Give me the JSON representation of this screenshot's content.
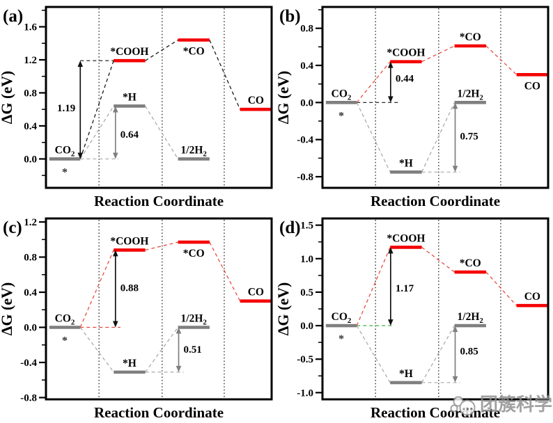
{
  "figure": {
    "xlabel": "Reaction Coordinate",
    "ylabel": "ΔG (eV)",
    "watermark": {
      "text": "团簇科学"
    },
    "colors": {
      "red": "#f40000",
      "redline": "#e8473a",
      "gray": "#7f7f7f",
      "lightgray": "#a8a8a8",
      "black": "#111111",
      "green": "#2ca62c"
    }
  },
  "chart_data": [
    {
      "type": "line",
      "panel": "(a)",
      "xlabel": "Reaction Coordinate",
      "ylabel": "ΔG (eV)",
      "ylim": [
        -0.35,
        1.84
      ],
      "ytick_values": [
        0.0,
        0.4,
        0.8,
        1.2,
        1.6
      ],
      "ytick_labels": [
        "0.0",
        "0.4",
        "0.8",
        "1.2",
        "1.6"
      ],
      "minor_tick_step": 0.2,
      "gridlines_x": [
        0.235,
        0.515,
        0.79
      ],
      "states": [
        {
          "label": "CO_2",
          "energy": 0.0,
          "col": 0,
          "color": "gray",
          "label_pos": "above",
          "star": true
        },
        {
          "label": "*COOH",
          "energy": 1.19,
          "col": 1,
          "color": "red",
          "label_pos": "above"
        },
        {
          "label": "*H",
          "energy": 0.64,
          "col": 1,
          "color": "gray",
          "label_pos": "above"
        },
        {
          "label": "*CO",
          "energy": 1.44,
          "col": 2,
          "color": "red",
          "label_pos": "below"
        },
        {
          "label": "1/2H_2",
          "energy": 0.0,
          "col": 2,
          "color": "gray",
          "label_pos": "above"
        },
        {
          "label": "CO",
          "energy": 0.6,
          "col": 3,
          "color": "red",
          "label_pos": "above"
        }
      ],
      "paths": [
        {
          "from": 0,
          "to": 1,
          "color": "black"
        },
        {
          "from": 1,
          "to": 3,
          "color": "black"
        },
        {
          "from": 3,
          "to": 5,
          "color": "black"
        },
        {
          "from": 0,
          "to": 2,
          "color": "lightgray"
        },
        {
          "from": 2,
          "to": 4,
          "color": "lightgray"
        }
      ],
      "annotations": [
        {
          "value": "1.19",
          "x": 0.152,
          "e1": 0.0,
          "e2": 1.19,
          "color": "black",
          "side": "left",
          "label_e": 0.62
        },
        {
          "value": "0.64",
          "x": 0.308,
          "e1": 0.0,
          "e2": 0.64,
          "color": "gray",
          "side": "right",
          "label_e": 0.3
        }
      ],
      "guides": [
        {
          "e": 1.19,
          "x1": 0.152,
          "x2": 0.302,
          "color": "black"
        },
        {
          "e": 0.0,
          "x1": 0.152,
          "x2": 0.322,
          "color": "lightgray"
        }
      ]
    },
    {
      "type": "line",
      "panel": "(b)",
      "xlabel": "Reaction Coordinate",
      "ylabel": "ΔG (eV)",
      "ylim": [
        -0.92,
        1.03
      ],
      "ytick_values": [
        -0.8,
        -0.4,
        0.0,
        0.4,
        0.8
      ],
      "ytick_labels": [
        "-0.8",
        "-0.4",
        "0.0",
        "0.4",
        "0.8"
      ],
      "minor_tick_step": 0.2,
      "gridlines_x": [
        0.235,
        0.515,
        0.79
      ],
      "states": [
        {
          "label": "CO_2",
          "energy": 0.0,
          "col": 0,
          "color": "gray",
          "label_pos": "above",
          "star": true
        },
        {
          "label": "*COOH",
          "energy": 0.44,
          "col": 1,
          "color": "red",
          "label_pos": "above"
        },
        {
          "label": "*H",
          "energy": -0.75,
          "col": 1,
          "color": "gray",
          "label_pos": "above"
        },
        {
          "label": "*CO",
          "energy": 0.61,
          "col": 2,
          "color": "red",
          "label_pos": "above"
        },
        {
          "label": "1/2H_2",
          "energy": 0.0,
          "col": 2,
          "color": "gray",
          "label_pos": "above"
        },
        {
          "label": "CO",
          "energy": 0.3,
          "col": 3,
          "color": "red",
          "label_pos": "below"
        }
      ],
      "paths": [
        {
          "from": 0,
          "to": 1,
          "color": "redline"
        },
        {
          "from": 1,
          "to": 3,
          "color": "redline"
        },
        {
          "from": 3,
          "to": 5,
          "color": "redline"
        },
        {
          "from": 0,
          "to": 2,
          "color": "lightgray"
        },
        {
          "from": 2,
          "to": 4,
          "color": "lightgray"
        }
      ],
      "annotations": [
        {
          "value": "0.44",
          "x": 0.302,
          "e1": 0.0,
          "e2": 0.44,
          "color": "black",
          "side": "right",
          "label_e": 0.26
        },
        {
          "value": "0.75",
          "x": 0.588,
          "e1": -0.75,
          "e2": 0.0,
          "color": "gray",
          "side": "right",
          "label_e": -0.36
        }
      ],
      "guides": [
        {
          "e": 0.0,
          "x1": 0.152,
          "x2": 0.34,
          "color": "black"
        },
        {
          "e": -0.75,
          "x1": 0.44,
          "x2": 0.61,
          "color": "lightgray"
        }
      ]
    },
    {
      "type": "line",
      "panel": "(c)",
      "xlabel": "Reaction Coordinate",
      "ylabel": "ΔG (eV)",
      "ylim": [
        -0.82,
        1.24
      ],
      "ytick_values": [
        -0.8,
        -0.4,
        0.0,
        0.4,
        0.8,
        1.2
      ],
      "ytick_labels": [
        "-0.8",
        "-0.4",
        "0.0",
        "0.4",
        "0.8",
        "1.2"
      ],
      "minor_tick_step": 0.2,
      "gridlines_x": [
        0.235,
        0.515,
        0.79
      ],
      "states": [
        {
          "label": "CO_2",
          "energy": 0.0,
          "col": 0,
          "color": "gray",
          "label_pos": "above",
          "star": true
        },
        {
          "label": "*COOH",
          "energy": 0.88,
          "col": 1,
          "color": "red",
          "label_pos": "above"
        },
        {
          "label": "*H",
          "energy": -0.51,
          "col": 1,
          "color": "gray",
          "label_pos": "above"
        },
        {
          "label": "*CO",
          "energy": 0.97,
          "col": 2,
          "color": "red",
          "label_pos": "below"
        },
        {
          "label": "1/2H_2",
          "energy": 0.0,
          "col": 2,
          "color": "gray",
          "label_pos": "above"
        },
        {
          "label": "CO",
          "energy": 0.3,
          "col": 3,
          "color": "red",
          "label_pos": "above"
        }
      ],
      "paths": [
        {
          "from": 0,
          "to": 1,
          "color": "redline"
        },
        {
          "from": 1,
          "to": 3,
          "color": "redline"
        },
        {
          "from": 3,
          "to": 5,
          "color": "redline"
        },
        {
          "from": 0,
          "to": 2,
          "color": "lightgray"
        },
        {
          "from": 2,
          "to": 4,
          "color": "lightgray"
        }
      ],
      "annotations": [
        {
          "value": "0.88",
          "x": 0.308,
          "e1": 0.0,
          "e2": 0.88,
          "color": "black",
          "side": "right",
          "label_e": 0.45
        },
        {
          "value": "0.51",
          "x": 0.588,
          "e1": -0.51,
          "e2": 0.0,
          "color": "gray",
          "side": "right",
          "label_e": -0.25
        }
      ],
      "guides": [
        {
          "e": 0.0,
          "x1": 0.152,
          "x2": 0.33,
          "color": "redline"
        },
        {
          "e": -0.51,
          "x1": 0.44,
          "x2": 0.61,
          "color": "lightgray"
        }
      ]
    },
    {
      "type": "line",
      "panel": "(d)",
      "xlabel": "Reaction Coordinate",
      "ylabel": "ΔG (eV)",
      "ylim": [
        -1.1,
        1.6
      ],
      "ytick_values": [
        -1.0,
        -0.5,
        0.0,
        0.5,
        1.0,
        1.5
      ],
      "ytick_labels": [
        "-1.0",
        "-0.5",
        "0.0",
        "0.5",
        "1.0",
        "1.5"
      ],
      "minor_tick_step": 0.25,
      "gridlines_x": [
        0.235,
        0.515,
        0.79
      ],
      "states": [
        {
          "label": "CO_2",
          "energy": 0.0,
          "col": 0,
          "color": "gray",
          "label_pos": "above",
          "star": true
        },
        {
          "label": "*COOH",
          "energy": 1.17,
          "col": 1,
          "color": "red",
          "label_pos": "above"
        },
        {
          "label": "*H",
          "energy": -0.85,
          "col": 1,
          "color": "gray",
          "label_pos": "above"
        },
        {
          "label": "*CO",
          "energy": 0.8,
          "col": 2,
          "color": "red",
          "label_pos": "above"
        },
        {
          "label": "1/2H_2",
          "energy": 0.0,
          "col": 2,
          "color": "gray",
          "label_pos": "above"
        },
        {
          "label": "CO",
          "energy": 0.3,
          "col": 3,
          "color": "red",
          "label_pos": "above"
        }
      ],
      "paths": [
        {
          "from": 0,
          "to": 1,
          "color": "redline"
        },
        {
          "from": 1,
          "to": 3,
          "color": "redline"
        },
        {
          "from": 3,
          "to": 5,
          "color": "redline"
        },
        {
          "from": 0,
          "to": 2,
          "color": "lightgray"
        },
        {
          "from": 2,
          "to": 4,
          "color": "lightgray"
        }
      ],
      "annotations": [
        {
          "value": "1.17",
          "x": 0.302,
          "e1": 0.0,
          "e2": 1.17,
          "color": "black",
          "side": "right",
          "label_e": 0.56
        },
        {
          "value": "0.85",
          "x": 0.588,
          "e1": -0.85,
          "e2": 0.0,
          "color": "gray",
          "side": "right",
          "label_e": -0.38
        }
      ],
      "guides": [
        {
          "e": 0.0,
          "x1": 0.152,
          "x2": 0.308,
          "color": "green"
        },
        {
          "e": -0.85,
          "x1": 0.44,
          "x2": 0.61,
          "color": "lightgray"
        }
      ]
    }
  ]
}
